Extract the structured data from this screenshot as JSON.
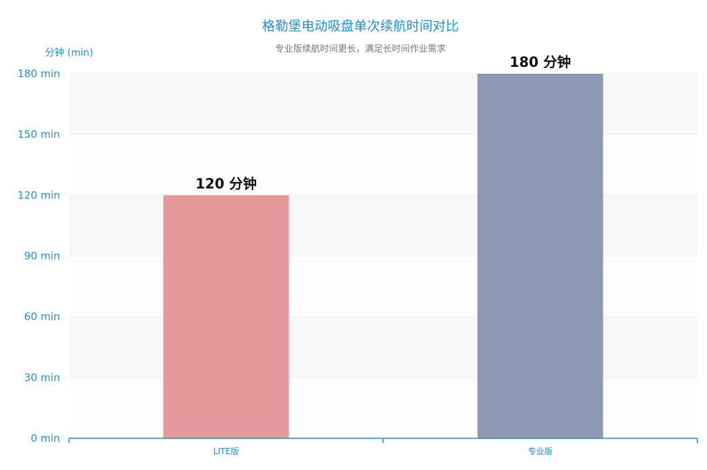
{
  "chart_data": {
    "type": "bar",
    "title": "格勒堡电动吸盘单次续航时间对比",
    "subtitle": "专业版续航时间更长，满足长时间作业需求",
    "ylabel": "分钟 (min)",
    "xlabel": "",
    "categories": [
      "LITE版",
      "专业版"
    ],
    "values": [
      120,
      180
    ],
    "data_labels": [
      "120 分钟",
      "180 分钟"
    ],
    "bar_colors": [
      "#e4999b",
      "#8d99b3"
    ],
    "ylim": [
      0,
      180
    ],
    "yticks": [
      0,
      30,
      60,
      90,
      120,
      150,
      180
    ],
    "ytick_labels": [
      "0 min",
      "30 min",
      "60 min",
      "90 min",
      "120 min",
      "150 min",
      "180 min"
    ],
    "grid": true,
    "split_area": true,
    "accent_color": "#1e8fd0"
  }
}
